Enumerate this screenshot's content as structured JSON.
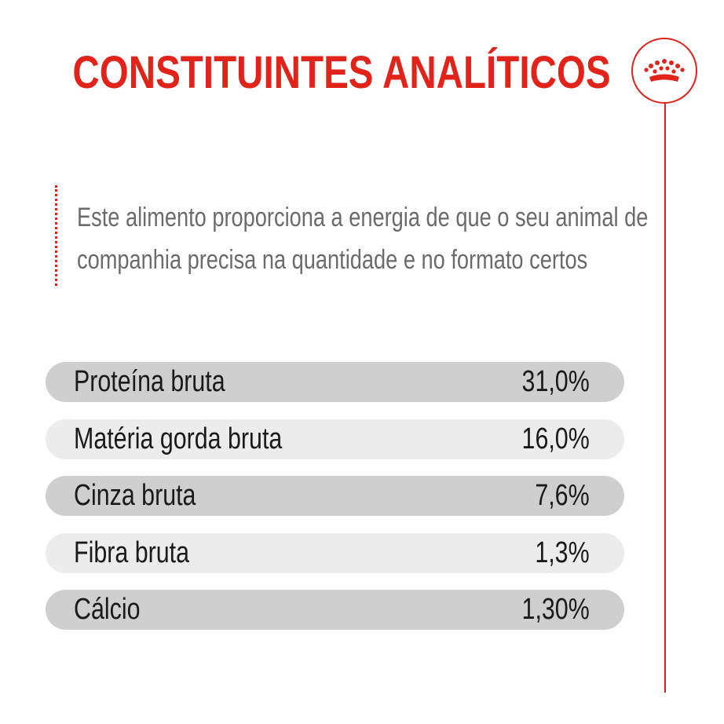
{
  "title": "CONSTITUINTES ANALÍTICOS",
  "intro": {
    "line1": "Este alimento proporciona a energia de que o seu animal de",
    "line2": "companhia precisa na quantidade e no formato certos"
  },
  "colors": {
    "accent": "#e2231a",
    "row_dark": "#cfcfcf",
    "row_light": "#ececec",
    "text_gray": "#6b6b6b"
  },
  "brand_icon": "crown-icon",
  "constituents": [
    {
      "label": "Proteína bruta",
      "value": "31,0%"
    },
    {
      "label": "Matéria gorda bruta",
      "value": "16,0%"
    },
    {
      "label": "Cinza bruta",
      "value": "7,6%"
    },
    {
      "label": "Fibra bruta",
      "value": "1,3%"
    },
    {
      "label": "Cálcio",
      "value": "1,30%"
    }
  ]
}
